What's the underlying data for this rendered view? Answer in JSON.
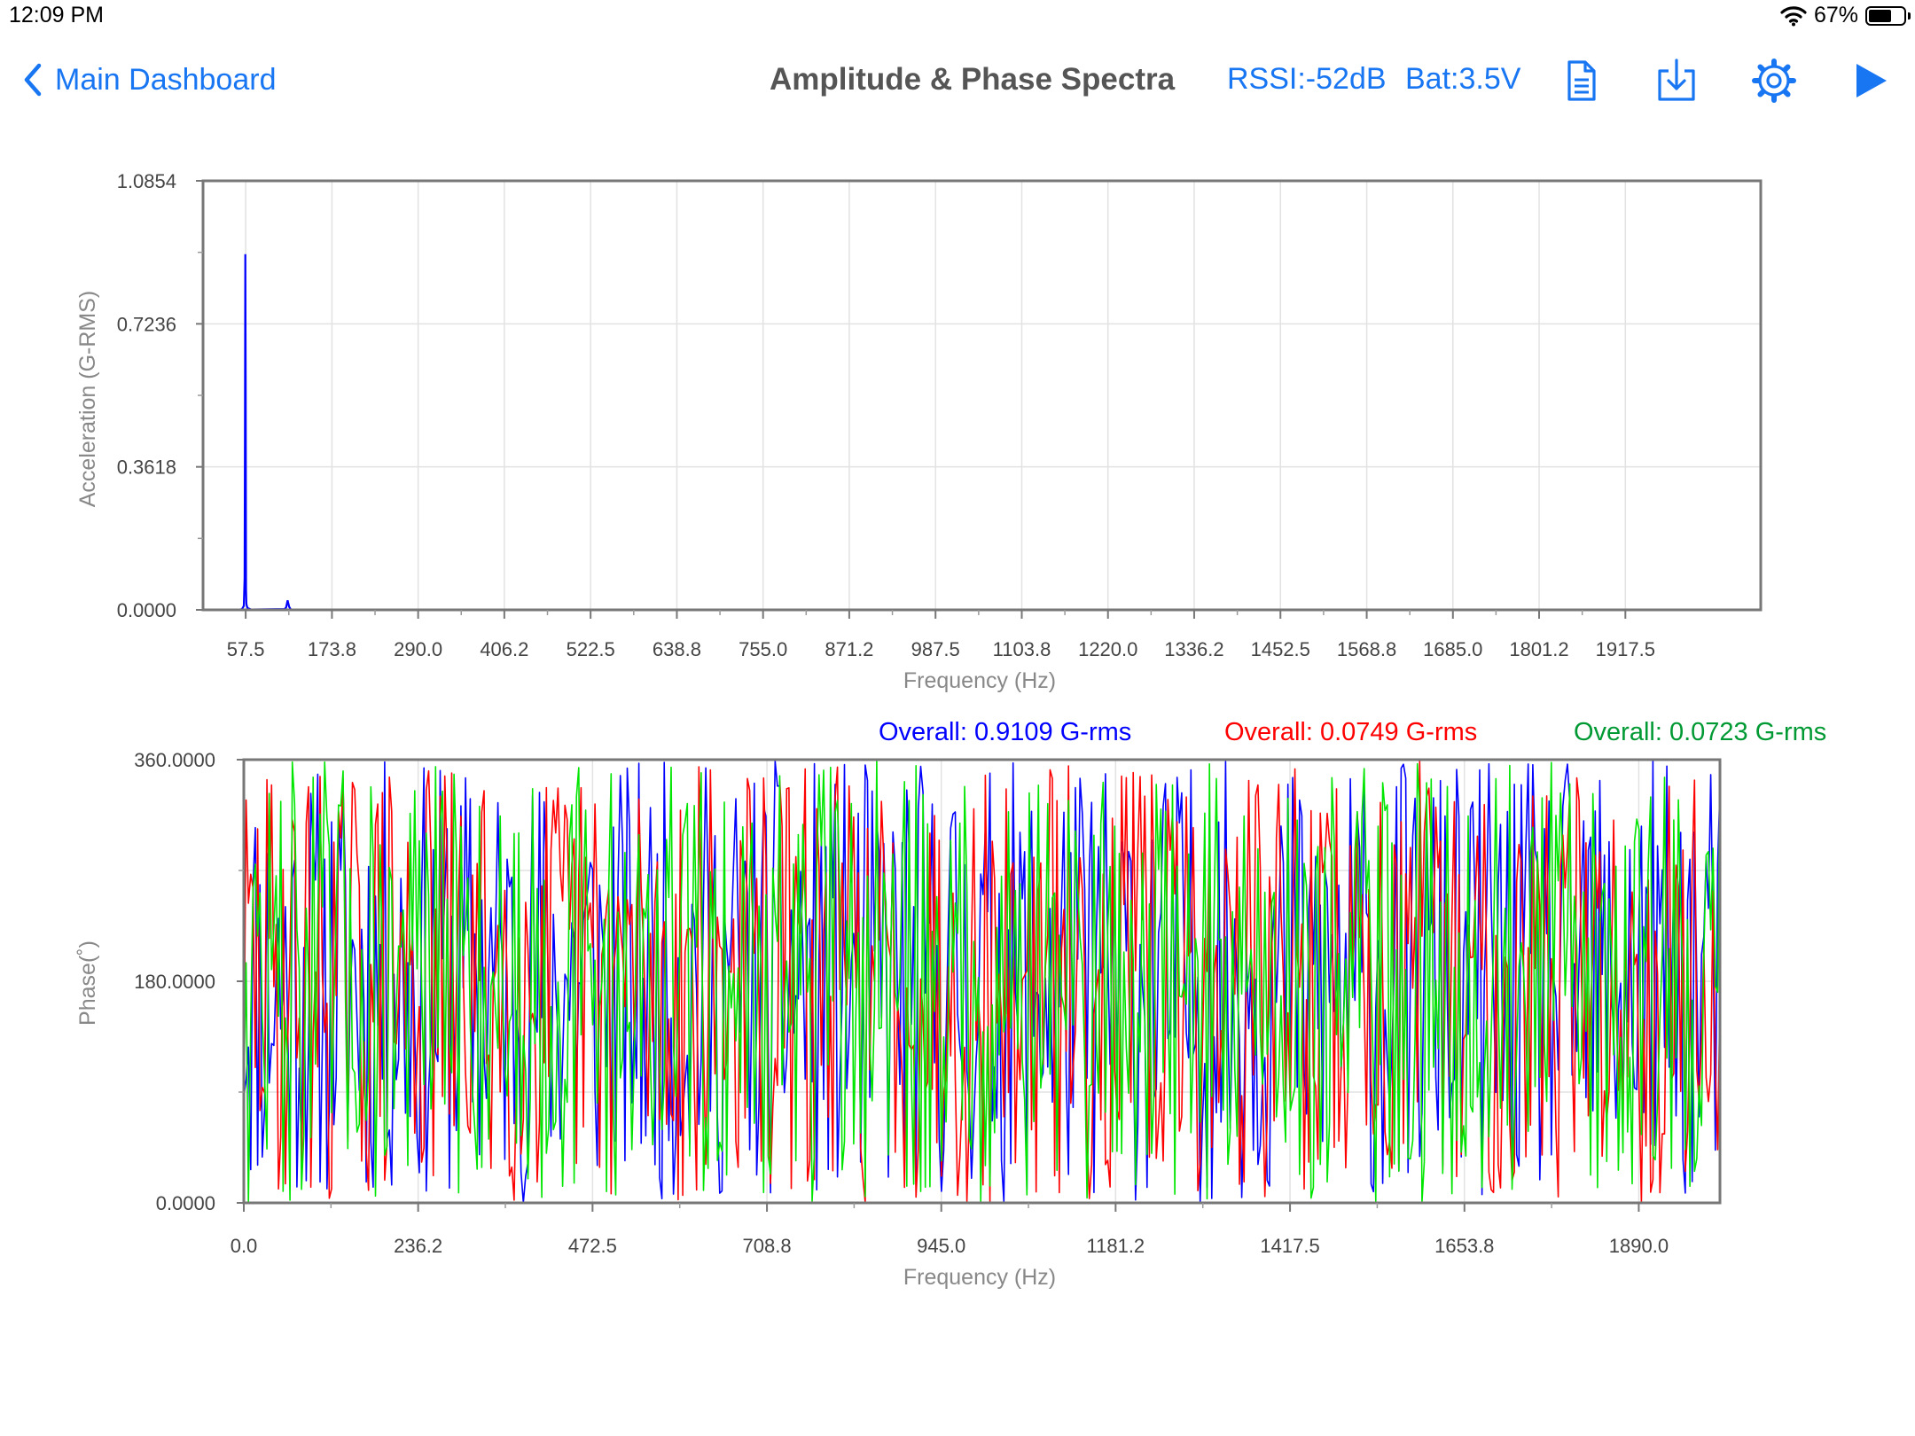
{
  "status_bar": {
    "time": "12:09 PM",
    "battery_percent": "67%",
    "battery_level": 0.67,
    "wifi_icon": "wifi-icon",
    "battery_icon": "battery-icon"
  },
  "nav": {
    "back_label": "Main Dashboard",
    "title": "Amplitude & Phase Spectra",
    "rssi": "RSSI:-52dB",
    "battery": "Bat:3.5V",
    "accent_color": "#1976f2",
    "icons": [
      "document-icon",
      "download-icon",
      "gear-icon",
      "play-icon"
    ]
  },
  "chart_data": [
    {
      "type": "line",
      "name": "amplitude-spectrum",
      "xlabel": "Frequency (Hz)",
      "ylabel": "Acceleration (G-RMS)",
      "xlim": [
        0,
        2100
      ],
      "ylim": [
        0,
        1.0854
      ],
      "x_ticks": [
        "57.5",
        "173.8",
        "290.0",
        "406.2",
        "522.5",
        "638.8",
        "755.0",
        "871.2",
        "987.5",
        "1103.8",
        "1220.0",
        "1336.2",
        "1452.5",
        "1568.8",
        "1685.0",
        "1801.2",
        "1917.5"
      ],
      "x_tick_values": [
        57.5,
        173.8,
        290.0,
        406.2,
        522.5,
        638.8,
        755.0,
        871.2,
        987.5,
        1103.8,
        1220.0,
        1336.2,
        1452.5,
        1568.8,
        1685.0,
        1801.2,
        1917.5
      ],
      "y_ticks": [
        "0.0000",
        "0.3618",
        "0.7236",
        "1.0854"
      ],
      "y_tick_values": [
        0,
        0.3618,
        0.7236,
        1.0854
      ],
      "grid": true,
      "series": [
        {
          "color": "#0000ff",
          "x": [
            50,
            53,
            55,
            56,
            56.5,
            57,
            57.5,
            58,
            58.5,
            59,
            60,
            62,
            65,
            110,
            112,
            114,
            116,
            118,
            120,
            300,
            600,
            900,
            1200,
            1500,
            1800,
            2000
          ],
          "y": [
            0,
            0.003,
            0.01,
            0.08,
            0.44,
            0.9,
            0.57,
            0.05,
            0.015,
            0.01,
            0.005,
            0.003,
            0.001,
            0.002,
            0.006,
            0.024,
            0.008,
            0.002,
            0,
            0.001,
            0.001,
            0.001,
            0.001,
            0.001,
            0.001,
            0.001
          ]
        }
      ]
    },
    {
      "type": "line",
      "name": "phase-spectrum",
      "xlabel": "Frequency (Hz)",
      "ylabel": "Phase(˚)",
      "xlim": [
        0,
        2000
      ],
      "ylim": [
        0,
        360
      ],
      "x_ticks": [
        "0.0",
        "236.2",
        "472.5",
        "708.8",
        "945.0",
        "1181.2",
        "1417.5",
        "1653.8",
        "1890.0"
      ],
      "x_tick_values": [
        0,
        236.2,
        472.5,
        708.8,
        945.0,
        1181.2,
        1417.5,
        1653.8,
        1890.0
      ],
      "y_ticks": [
        "0.0000",
        "180.0000",
        "360.0000"
      ],
      "y_tick_values": [
        0,
        180,
        360
      ],
      "grid": true,
      "samples_per_series": 640,
      "series": [
        {
          "color": "#0000ff",
          "overall": "Overall: 0.9109 G-rms",
          "seed": 11
        },
        {
          "color": "#ff0000",
          "overall": "Overall: 0.0749 G-rms",
          "seed": 29
        },
        {
          "color": "#00e600",
          "overall": "Overall: 0.0723 G-rms",
          "seed": 47
        }
      ],
      "legend_colors": [
        "#0000ff",
        "#ff0000",
        "#009933"
      ]
    }
  ]
}
